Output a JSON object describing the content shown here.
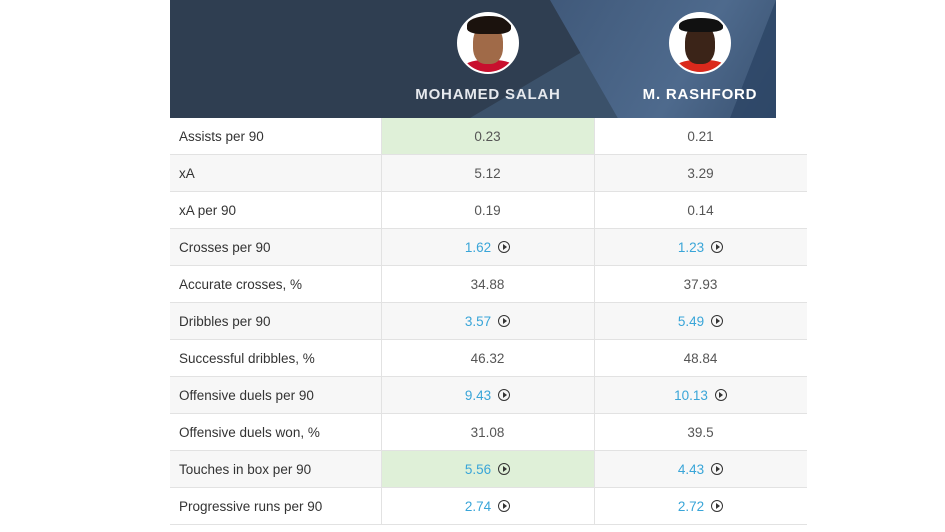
{
  "header": {
    "players": [
      {
        "name": "MOHAMED SALAH",
        "avatar": "player-photo-salah"
      },
      {
        "name": "M. RASHFORD",
        "avatar": "player-photo-rashford"
      }
    ]
  },
  "colors": {
    "header_bg": "#2f3e51",
    "highlight_bg": "#dff0d8",
    "link": "#39a5d8"
  },
  "rows": [
    {
      "label": "Assists per 90",
      "p1": "0.23",
      "p2": "0.21",
      "video": false,
      "highlight": "p1"
    },
    {
      "label": "xA",
      "p1": "5.12",
      "p2": "3.29",
      "video": false,
      "highlight": ""
    },
    {
      "label": "xA per 90",
      "p1": "0.19",
      "p2": "0.14",
      "video": false,
      "highlight": ""
    },
    {
      "label": "Crosses per 90",
      "p1": "1.62",
      "p2": "1.23",
      "video": true,
      "highlight": ""
    },
    {
      "label": "Accurate crosses, %",
      "p1": "34.88",
      "p2": "37.93",
      "video": false,
      "highlight": ""
    },
    {
      "label": "Dribbles per 90",
      "p1": "3.57",
      "p2": "5.49",
      "video": true,
      "highlight": ""
    },
    {
      "label": "Successful dribbles, %",
      "p1": "46.32",
      "p2": "48.84",
      "video": false,
      "highlight": ""
    },
    {
      "label": "Offensive duels per 90",
      "p1": "9.43",
      "p2": "10.13",
      "video": true,
      "highlight": ""
    },
    {
      "label": "Offensive duels won, %",
      "p1": "31.08",
      "p2": "39.5",
      "video": false,
      "highlight": ""
    },
    {
      "label": "Touches in box per 90",
      "p1": "5.56",
      "p2": "4.43",
      "video": true,
      "highlight": "p1"
    },
    {
      "label": "Progressive runs per 90",
      "p1": "2.74",
      "p2": "2.72",
      "video": true,
      "highlight": ""
    }
  ]
}
